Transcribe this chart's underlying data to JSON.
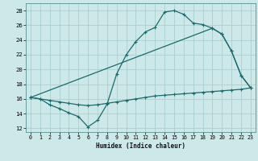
{
  "xlabel": "Humidex (Indice chaleur)",
  "bg_color": "#cce8e8",
  "grid_color": "#aacfcf",
  "line_color": "#1a6b6b",
  "xlim": [
    -0.5,
    23.5
  ],
  "ylim": [
    11.5,
    29.0
  ],
  "xticks": [
    0,
    1,
    2,
    3,
    4,
    5,
    6,
    7,
    8,
    9,
    10,
    11,
    12,
    13,
    14,
    15,
    16,
    17,
    18,
    19,
    20,
    21,
    22,
    23
  ],
  "yticks": [
    12,
    14,
    16,
    18,
    20,
    22,
    24,
    26,
    28
  ],
  "curve1_x": [
    0,
    1,
    2,
    3,
    4,
    5,
    6,
    7,
    8,
    9,
    10,
    11,
    12,
    13,
    14,
    15,
    16,
    17,
    18,
    19,
    20,
    21,
    22,
    23
  ],
  "curve1_y": [
    16.2,
    16.0,
    15.2,
    14.7,
    14.1,
    13.6,
    12.2,
    13.1,
    15.3,
    19.4,
    22.0,
    23.8,
    25.1,
    25.7,
    27.8,
    28.0,
    27.5,
    26.3,
    26.1,
    25.6,
    24.8,
    22.5,
    19.2,
    17.5
  ],
  "curve2_x": [
    0,
    19,
    20,
    21,
    22,
    23
  ],
  "curve2_y": [
    16.2,
    25.6,
    24.8,
    22.5,
    19.2,
    17.5
  ],
  "curve3_x": [
    0,
    1,
    2,
    3,
    4,
    5,
    6,
    7,
    8,
    9,
    10,
    11,
    12,
    13,
    14,
    15,
    16,
    17,
    18,
    19,
    20,
    21,
    22,
    23
  ],
  "curve3_y": [
    16.2,
    16.0,
    15.8,
    15.6,
    15.4,
    15.2,
    15.1,
    15.2,
    15.4,
    15.6,
    15.8,
    16.0,
    16.2,
    16.4,
    16.5,
    16.6,
    16.7,
    16.8,
    16.9,
    17.0,
    17.1,
    17.2,
    17.3,
    17.5
  ]
}
